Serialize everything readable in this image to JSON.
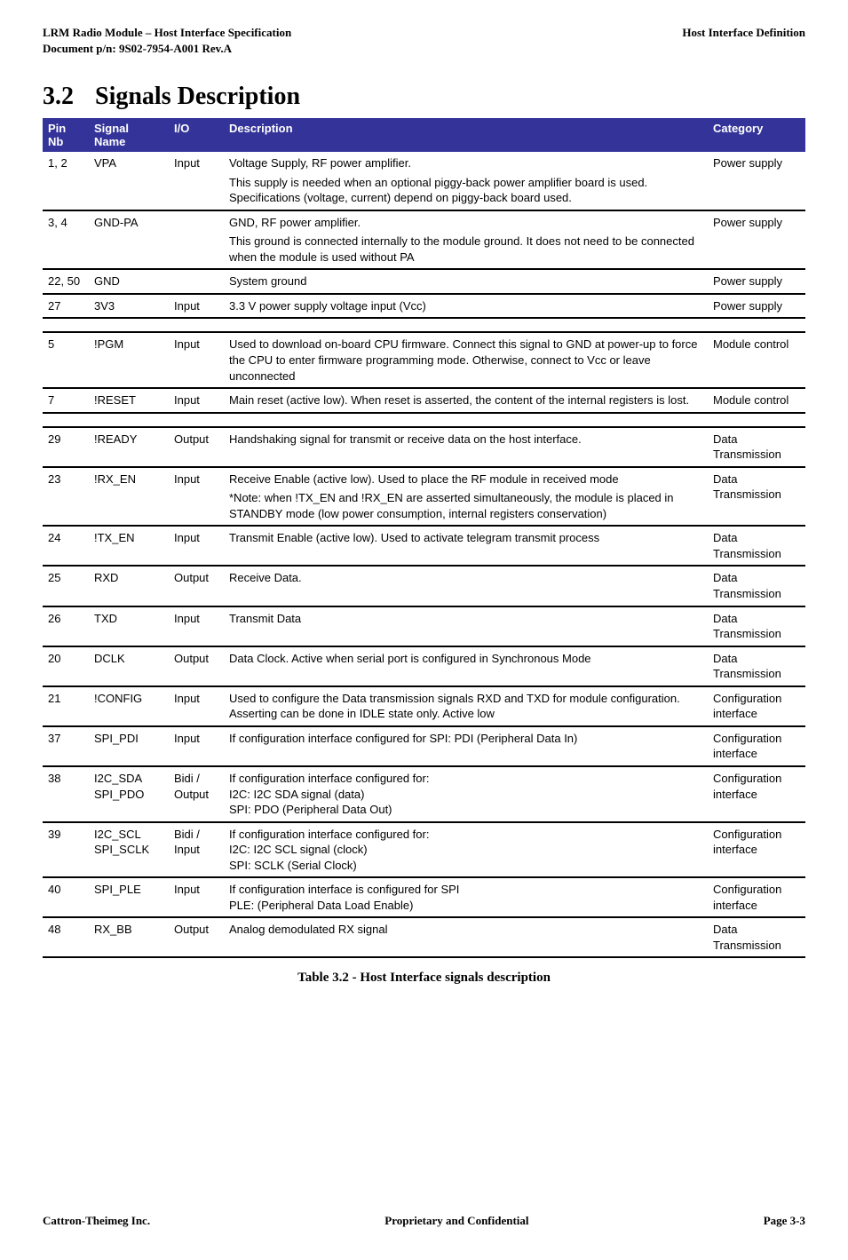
{
  "header": {
    "left": "LRM Radio Module – Host Interface Specification\nDocument p/n: 9S02-7954-A001 Rev.A",
    "right": "Host Interface Definition"
  },
  "section": {
    "number": "3.2",
    "title": "Signals Description"
  },
  "table": {
    "headers": {
      "pin": "Pin Nb",
      "name": "Signal Name",
      "io": "I/O",
      "desc": "Description",
      "cat": "Category"
    },
    "rows": [
      {
        "pin": "1, 2",
        "name": "VPA",
        "io": "Input",
        "desc": [
          "Voltage Supply, RF power amplifier.",
          "This supply is needed when an optional piggy-back power amplifier board is used.  Specifications (voltage, current) depend on piggy-back board used."
        ],
        "cat": "Power supply"
      },
      {
        "pin": "3, 4",
        "name": "GND-PA",
        "io": "",
        "desc": [
          "GND,  RF power amplifier.",
          "This ground is connected internally to the module ground.  It does not need to be connected when the module is used without PA"
        ],
        "cat": "Power supply"
      },
      {
        "pin": "22, 50",
        "name": "GND",
        "io": "",
        "desc": [
          "System ground"
        ],
        "cat": "Power supply"
      },
      {
        "pin": "27",
        "name": "3V3",
        "io": "Input",
        "desc": [
          "3.3 V power supply voltage input (Vcc)"
        ],
        "cat": "Power supply"
      },
      {
        "spacer": true
      },
      {
        "pin": "5",
        "name": "!PGM",
        "io": "Input",
        "desc": [
          "Used to download on-board CPU firmware.  Connect this signal to GND at power-up to force the CPU to enter firmware programming mode. Otherwise, connect to Vcc or leave unconnected"
        ],
        "cat": "Module control"
      },
      {
        "pin": "7",
        "name": "!RESET",
        "io": "Input",
        "desc": [
          "Main reset (active low).  When reset is asserted, the content of the internal registers is lost."
        ],
        "cat": "Module control"
      },
      {
        "spacer": true
      },
      {
        "pin": "29",
        "name": "!READY",
        "io": "Output",
        "desc": [
          "Handshaking signal for transmit or receive data on the host interface."
        ],
        "cat": "Data Transmission"
      },
      {
        "pin": "23",
        "name": "!RX_EN",
        "io": "Input",
        "desc": [
          "Receive Enable (active low).  Used to place the RF module in received mode",
          "*Note: when !TX_EN and !RX_EN are asserted simultaneously, the module is placed in STANDBY mode (low power consumption, internal registers conservation)"
        ],
        "cat": "Data Transmission"
      },
      {
        "pin": "24",
        "name": "!TX_EN",
        "io": "Input",
        "desc": [
          "Transmit Enable (active low).  Used to activate telegram transmit process"
        ],
        "cat": "Data Transmission"
      },
      {
        "pin": "25",
        "name": "RXD",
        "io": "Output",
        "desc": [
          "Receive Data."
        ],
        "cat": "Data Transmission"
      },
      {
        "pin": "26",
        "name": "TXD",
        "io": "Input",
        "desc": [
          "Transmit Data"
        ],
        "cat": "Data Transmission"
      },
      {
        "pin": "20",
        "name": "DCLK",
        "io": "Output",
        "desc": [
          "Data Clock.  Active when serial port is configured in Synchronous Mode"
        ],
        "cat": "Data Transmission"
      },
      {
        "pin": "21",
        "name": "!CONFIG",
        "io": "Input",
        "desc": [
          "Used to configure the Data transmission signals RXD and TXD for module configuration.\nAsserting can be done in IDLE state only.  Active low"
        ],
        "cat": "Configuration interface"
      },
      {
        "pin": "37",
        "name": "SPI_PDI",
        "io": "Input",
        "desc": [
          "If configuration interface configured for SPI: PDI (Peripheral Data In)"
        ],
        "cat": "Configuration interface"
      },
      {
        "pin": "38",
        "name": "I2C_SDA\nSPI_PDO",
        "io": "Bidi / Output",
        "desc": [
          "If configuration interface configured for:\nI2C:  I2C SDA signal (data)\nSPI:  PDO (Peripheral Data Out)"
        ],
        "cat": "Configuration interface"
      },
      {
        "pin": "39",
        "name": "I2C_SCL\nSPI_SCLK",
        "io": "Bidi / Input",
        "desc": [
          "If configuration interface configured for:\nI2C: I2C SCL signal (clock)\nSPI: SCLK (Serial Clock)"
        ],
        "cat": "Configuration interface"
      },
      {
        "pin": "40",
        "name": "SPI_PLE",
        "io": "Input",
        "desc": [
          "If configuration interface is configured for SPI\nPLE: (Peripheral Data Load Enable)"
        ],
        "cat": "Configuration interface"
      },
      {
        "pin": "48",
        "name": "RX_BB",
        "io": "Output",
        "desc": [
          "Analog demodulated RX signal"
        ],
        "cat": "Data Transmission"
      }
    ]
  },
  "caption": "Table 3.2 - Host Interface signals description",
  "footer": {
    "left": "Cattron-Theimeg Inc.",
    "center": "Proprietary and Confidential",
    "right": "Page  3-3"
  }
}
